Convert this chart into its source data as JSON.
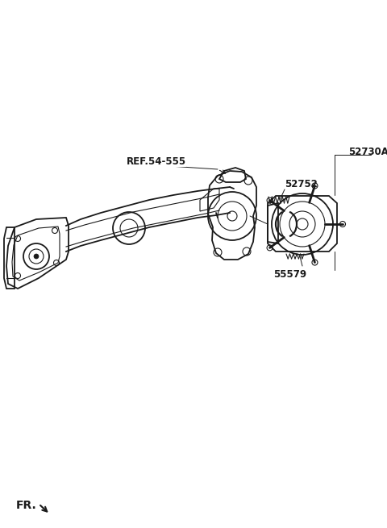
{
  "bg_color": "#ffffff",
  "line_color": "#1a1a1a",
  "lw_main": 1.3,
  "lw_thin": 0.8,
  "lw_leader": 0.7,
  "labels": {
    "ref": "REF.54-555",
    "part1": "52730A",
    "part2": "52752",
    "part3": "55579",
    "fr": "FR."
  },
  "figsize": [
    4.8,
    6.55
  ],
  "dpi": 100,
  "xlim": [
    0,
    480
  ],
  "ylim": [
    0,
    655
  ]
}
